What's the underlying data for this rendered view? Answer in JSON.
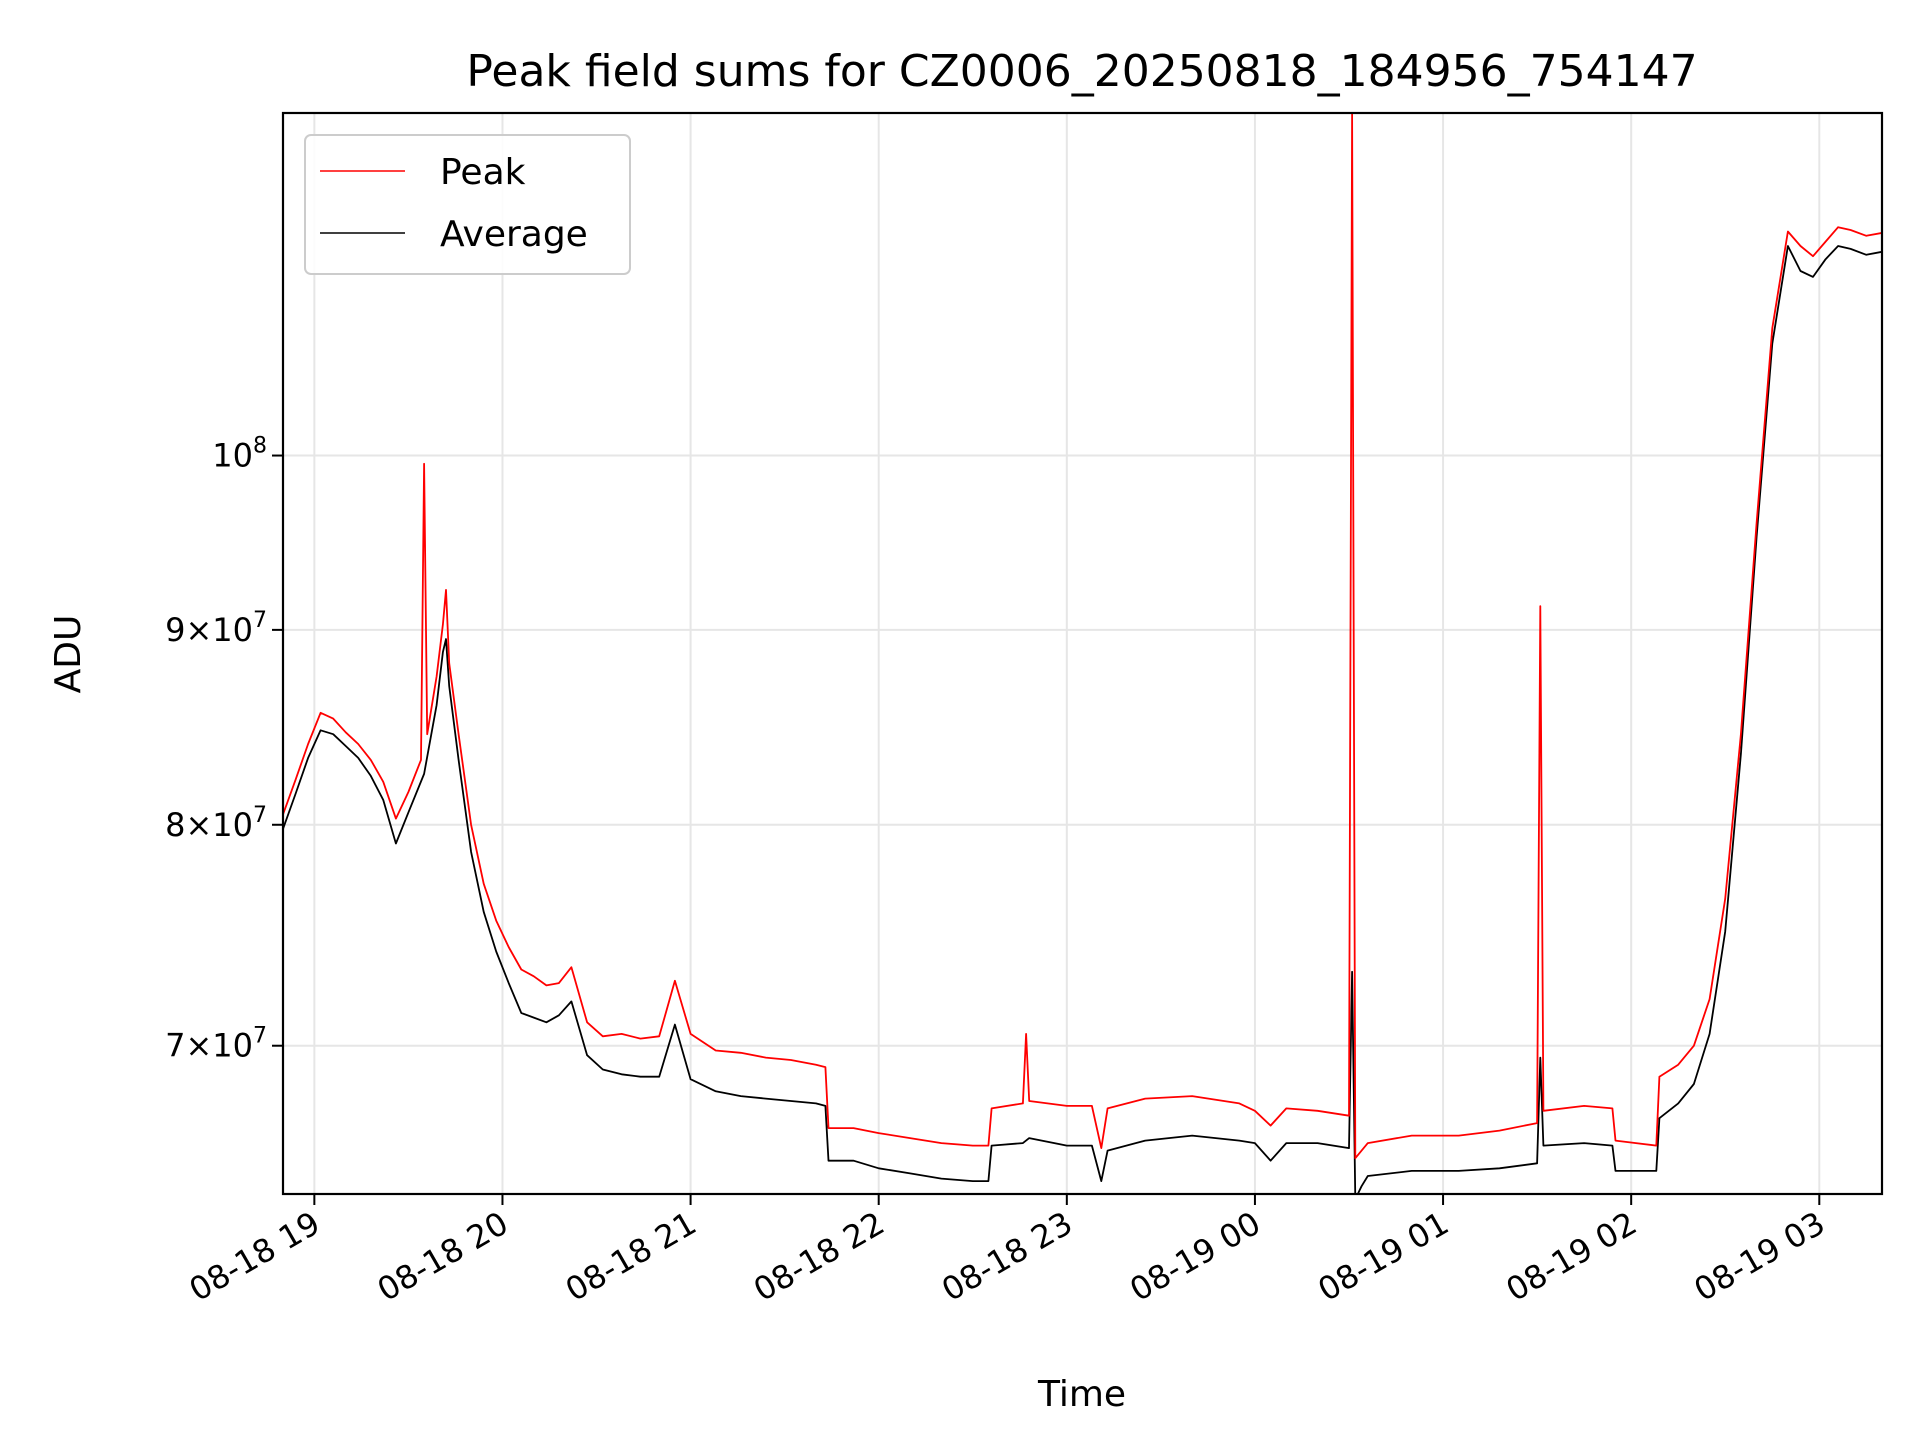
{
  "chart_data": {
    "type": "line",
    "title": "Peak field sums for CZ0006_20250818_184956_754147",
    "xlabel": "Time",
    "ylabel": "ADU",
    "yscale": "log",
    "grid": true,
    "legend_position": "top-left",
    "xlim": [
      "2025-08-18 18:50",
      "2025-08-19 03:20"
    ],
    "ylim": [
      64000000,
      123000000
    ],
    "x_ticks": [
      {
        "value": "2025-08-18 19:00",
        "label": "08-18 19"
      },
      {
        "value": "2025-08-18 20:00",
        "label": "08-18 20"
      },
      {
        "value": "2025-08-18 21:00",
        "label": "08-18 21"
      },
      {
        "value": "2025-08-18 22:00",
        "label": "08-18 22"
      },
      {
        "value": "2025-08-18 23:00",
        "label": "08-18 23"
      },
      {
        "value": "2025-08-19 00:00",
        "label": "08-19 00"
      },
      {
        "value": "2025-08-19 01:00",
        "label": "08-19 01"
      },
      {
        "value": "2025-08-19 02:00",
        "label": "08-19 02"
      },
      {
        "value": "2025-08-19 03:00",
        "label": "08-19 03"
      }
    ],
    "y_ticks": [
      {
        "value": 70000000,
        "mantissa": "7",
        "exponent": "7"
      },
      {
        "value": 80000000,
        "mantissa": "8",
        "exponent": "7"
      },
      {
        "value": 90000000,
        "mantissa": "9",
        "exponent": "7"
      },
      {
        "value": 100000000,
        "mantissa": "",
        "exponent": "8"
      }
    ],
    "series": [
      {
        "name": "Peak",
        "color": "#ff0000",
        "points": [
          [
            "2025-08-18 18:50",
            80500000
          ],
          [
            "2025-08-18 18:54",
            82200000
          ],
          [
            "2025-08-18 18:58",
            84000000
          ],
          [
            "2025-08-18 19:02",
            85600000
          ],
          [
            "2025-08-18 19:06",
            85300000
          ],
          [
            "2025-08-18 19:10",
            84600000
          ],
          [
            "2025-08-18 19:14",
            84000000
          ],
          [
            "2025-08-18 19:18",
            83200000
          ],
          [
            "2025-08-18 19:22",
            82100000
          ],
          [
            "2025-08-18 19:26",
            80300000
          ],
          [
            "2025-08-18 19:30",
            81600000
          ],
          [
            "2025-08-18 19:34",
            83200000
          ],
          [
            "2025-08-18 19:35",
            99500000
          ],
          [
            "2025-08-18 19:36",
            84500000
          ],
          [
            "2025-08-18 19:39",
            87500000
          ],
          [
            "2025-08-18 19:41",
            90300000
          ],
          [
            "2025-08-18 19:42",
            92200000
          ],
          [
            "2025-08-18 19:43",
            88200000
          ],
          [
            "2025-08-18 19:46",
            84500000
          ],
          [
            "2025-08-18 19:50",
            80000000
          ],
          [
            "2025-08-18 19:54",
            77200000
          ],
          [
            "2025-08-18 19:58",
            75500000
          ],
          [
            "2025-08-18 20:02",
            74300000
          ],
          [
            "2025-08-18 20:06",
            73300000
          ],
          [
            "2025-08-18 20:10",
            73000000
          ],
          [
            "2025-08-18 20:14",
            72600000
          ],
          [
            "2025-08-18 20:18",
            72700000
          ],
          [
            "2025-08-18 20:22",
            73400000
          ],
          [
            "2025-08-18 20:27",
            71000000
          ],
          [
            "2025-08-18 20:32",
            70400000
          ],
          [
            "2025-08-18 20:38",
            70500000
          ],
          [
            "2025-08-18 20:44",
            70300000
          ],
          [
            "2025-08-18 20:50",
            70400000
          ],
          [
            "2025-08-18 20:55",
            72800000
          ],
          [
            "2025-08-18 21:00",
            70500000
          ],
          [
            "2025-08-18 21:08",
            69800000
          ],
          [
            "2025-08-18 21:16",
            69700000
          ],
          [
            "2025-08-18 21:24",
            69500000
          ],
          [
            "2025-08-18 21:32",
            69400000
          ],
          [
            "2025-08-18 21:40",
            69200000
          ],
          [
            "2025-08-18 21:43",
            69100000
          ],
          [
            "2025-08-18 21:44",
            66600000
          ],
          [
            "2025-08-18 21:52",
            66600000
          ],
          [
            "2025-08-18 22:00",
            66400000
          ],
          [
            "2025-08-18 22:10",
            66200000
          ],
          [
            "2025-08-18 22:20",
            66000000
          ],
          [
            "2025-08-18 22:30",
            65900000
          ],
          [
            "2025-08-18 22:35",
            65900000
          ],
          [
            "2025-08-18 22:36",
            67400000
          ],
          [
            "2025-08-18 22:46",
            67600000
          ],
          [
            "2025-08-18 22:47",
            70500000
          ],
          [
            "2025-08-18 22:48",
            67700000
          ],
          [
            "2025-08-18 23:00",
            67500000
          ],
          [
            "2025-08-18 23:08",
            67500000
          ],
          [
            "2025-08-18 23:11",
            65800000
          ],
          [
            "2025-08-18 23:13",
            67400000
          ],
          [
            "2025-08-18 23:25",
            67800000
          ],
          [
            "2025-08-18 23:40",
            67900000
          ],
          [
            "2025-08-18 23:55",
            67600000
          ],
          [
            "2025-08-19 00:00",
            67300000
          ],
          [
            "2025-08-19 00:05",
            66700000
          ],
          [
            "2025-08-19 00:10",
            67400000
          ],
          [
            "2025-08-19 00:20",
            67300000
          ],
          [
            "2025-08-19 00:30",
            67100000
          ],
          [
            "2025-08-19 00:31",
            123000000
          ],
          [
            "2025-08-19 00:32",
            65400000
          ],
          [
            "2025-08-19 00:36",
            66000000
          ],
          [
            "2025-08-19 00:50",
            66300000
          ],
          [
            "2025-08-19 01:05",
            66300000
          ],
          [
            "2025-08-19 01:18",
            66500000
          ],
          [
            "2025-08-19 01:30",
            66800000
          ],
          [
            "2025-08-19 01:31",
            91300000
          ],
          [
            "2025-08-19 01:32",
            67300000
          ],
          [
            "2025-08-19 01:45",
            67500000
          ],
          [
            "2025-08-19 01:54",
            67400000
          ],
          [
            "2025-08-19 01:55",
            66100000
          ],
          [
            "2025-08-19 02:08",
            65900000
          ],
          [
            "2025-08-19 02:09",
            68700000
          ],
          [
            "2025-08-19 02:15",
            69200000
          ],
          [
            "2025-08-19 02:20",
            70000000
          ],
          [
            "2025-08-19 02:25",
            72000000
          ],
          [
            "2025-08-19 02:30",
            76500000
          ],
          [
            "2025-08-19 02:35",
            84500000
          ],
          [
            "2025-08-19 02:40",
            96000000
          ],
          [
            "2025-08-19 02:45",
            108000000
          ],
          [
            "2025-08-19 02:50",
            114500000
          ],
          [
            "2025-08-19 02:54",
            113500000
          ],
          [
            "2025-08-19 02:58",
            112800000
          ],
          [
            "2025-08-19 03:02",
            113800000
          ],
          [
            "2025-08-19 03:06",
            114800000
          ],
          [
            "2025-08-19 03:10",
            114600000
          ],
          [
            "2025-08-19 03:15",
            114200000
          ],
          [
            "2025-08-19 03:20",
            114400000
          ]
        ]
      },
      {
        "name": "Average",
        "color": "#000000",
        "points": [
          [
            "2025-08-18 18:50",
            79800000
          ],
          [
            "2025-08-18 18:54",
            81500000
          ],
          [
            "2025-08-18 18:58",
            83300000
          ],
          [
            "2025-08-18 19:02",
            84700000
          ],
          [
            "2025-08-18 19:06",
            84500000
          ],
          [
            "2025-08-18 19:10",
            83900000
          ],
          [
            "2025-08-18 19:14",
            83300000
          ],
          [
            "2025-08-18 19:18",
            82400000
          ],
          [
            "2025-08-18 19:22",
            81200000
          ],
          [
            "2025-08-18 19:26",
            79100000
          ],
          [
            "2025-08-18 19:30",
            80600000
          ],
          [
            "2025-08-18 19:35",
            82500000
          ],
          [
            "2025-08-18 19:39",
            86000000
          ],
          [
            "2025-08-18 19:41",
            88800000
          ],
          [
            "2025-08-18 19:42",
            89500000
          ],
          [
            "2025-08-18 19:43",
            87000000
          ],
          [
            "2025-08-18 19:46",
            83200000
          ],
          [
            "2025-08-18 19:50",
            78700000
          ],
          [
            "2025-08-18 19:54",
            75900000
          ],
          [
            "2025-08-18 19:58",
            74100000
          ],
          [
            "2025-08-18 20:02",
            72700000
          ],
          [
            "2025-08-18 20:06",
            71400000
          ],
          [
            "2025-08-18 20:10",
            71200000
          ],
          [
            "2025-08-18 20:14",
            71000000
          ],
          [
            "2025-08-18 20:18",
            71300000
          ],
          [
            "2025-08-18 20:22",
            71900000
          ],
          [
            "2025-08-18 20:27",
            69600000
          ],
          [
            "2025-08-18 20:32",
            69000000
          ],
          [
            "2025-08-18 20:38",
            68800000
          ],
          [
            "2025-08-18 20:44",
            68700000
          ],
          [
            "2025-08-18 20:50",
            68700000
          ],
          [
            "2025-08-18 20:55",
            70900000
          ],
          [
            "2025-08-18 21:00",
            68600000
          ],
          [
            "2025-08-18 21:08",
            68100000
          ],
          [
            "2025-08-18 21:16",
            67900000
          ],
          [
            "2025-08-18 21:24",
            67800000
          ],
          [
            "2025-08-18 21:32",
            67700000
          ],
          [
            "2025-08-18 21:40",
            67600000
          ],
          [
            "2025-08-18 21:43",
            67500000
          ],
          [
            "2025-08-18 21:44",
            65300000
          ],
          [
            "2025-08-18 21:52",
            65300000
          ],
          [
            "2025-08-18 22:00",
            65000000
          ],
          [
            "2025-08-18 22:10",
            64800000
          ],
          [
            "2025-08-18 22:20",
            64600000
          ],
          [
            "2025-08-18 22:30",
            64500000
          ],
          [
            "2025-08-18 22:35",
            64500000
          ],
          [
            "2025-08-18 22:36",
            65900000
          ],
          [
            "2025-08-18 22:46",
            66000000
          ],
          [
            "2025-08-18 22:48",
            66200000
          ],
          [
            "2025-08-18 23:00",
            65900000
          ],
          [
            "2025-08-18 23:08",
            65900000
          ],
          [
            "2025-08-18 23:11",
            64500000
          ],
          [
            "2025-08-18 23:13",
            65700000
          ],
          [
            "2025-08-18 23:25",
            66100000
          ],
          [
            "2025-08-18 23:40",
            66300000
          ],
          [
            "2025-08-18 23:55",
            66100000
          ],
          [
            "2025-08-19 00:00",
            66000000
          ],
          [
            "2025-08-19 00:05",
            65300000
          ],
          [
            "2025-08-19 00:10",
            66000000
          ],
          [
            "2025-08-19 00:20",
            66000000
          ],
          [
            "2025-08-19 00:30",
            65800000
          ],
          [
            "2025-08-19 00:31",
            73200000
          ],
          [
            "2025-08-19 00:32",
            63800000
          ],
          [
            "2025-08-19 00:34",
            64300000
          ],
          [
            "2025-08-19 00:36",
            64700000
          ],
          [
            "2025-08-19 00:50",
            64900000
          ],
          [
            "2025-08-19 01:05",
            64900000
          ],
          [
            "2025-08-19 01:18",
            65000000
          ],
          [
            "2025-08-19 01:30",
            65200000
          ],
          [
            "2025-08-19 01:31",
            69500000
          ],
          [
            "2025-08-19 01:32",
            65900000
          ],
          [
            "2025-08-19 01:45",
            66000000
          ],
          [
            "2025-08-19 01:54",
            65900000
          ],
          [
            "2025-08-19 01:55",
            64900000
          ],
          [
            "2025-08-19 02:08",
            64900000
          ],
          [
            "2025-08-19 02:09",
            67000000
          ],
          [
            "2025-08-19 02:15",
            67600000
          ],
          [
            "2025-08-19 02:20",
            68400000
          ],
          [
            "2025-08-19 02:25",
            70500000
          ],
          [
            "2025-08-19 02:30",
            75000000
          ],
          [
            "2025-08-19 02:35",
            83500000
          ],
          [
            "2025-08-19 02:40",
            95200000
          ],
          [
            "2025-08-19 02:45",
            107000000
          ],
          [
            "2025-08-19 02:50",
            113500000
          ],
          [
            "2025-08-19 02:54",
            111800000
          ],
          [
            "2025-08-19 02:58",
            111400000
          ],
          [
            "2025-08-19 03:02",
            112600000
          ],
          [
            "2025-08-19 03:06",
            113500000
          ],
          [
            "2025-08-19 03:10",
            113300000
          ],
          [
            "2025-08-19 03:15",
            112900000
          ],
          [
            "2025-08-19 03:20",
            113100000
          ]
        ]
      }
    ]
  }
}
